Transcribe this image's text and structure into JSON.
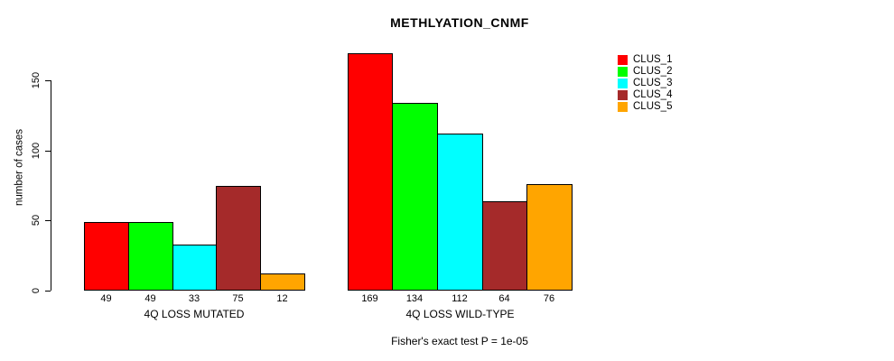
{
  "title": "METHLYATION_CNMF",
  "footer": "Fisher's exact test P = 1e-05",
  "y_axis": {
    "label": "number of cases",
    "ticks": [
      0,
      50,
      100,
      150
    ]
  },
  "legend": {
    "items": [
      {
        "label": "CLUS_1",
        "color": "#ff0000"
      },
      {
        "label": "CLUS_2",
        "color": "#00ff00"
      },
      {
        "label": "CLUS_3",
        "color": "#00ffff"
      },
      {
        "label": "CLUS_4",
        "color": "#a52a2a"
      },
      {
        "label": "CLUS_5",
        "color": "#ffa500"
      }
    ]
  },
  "chart_data": {
    "type": "bar",
    "title": "METHLYATION_CNMF",
    "xlabel": "",
    "ylabel": "number of cases",
    "ylim": [
      0,
      150
    ],
    "grid": false,
    "legend_position": "top-right",
    "categories": [
      "4Q LOSS MUTATED",
      "4Q LOSS WILD-TYPE"
    ],
    "series": [
      {
        "name": "CLUS_1",
        "color": "#ff0000",
        "values": [
          49,
          169
        ]
      },
      {
        "name": "CLUS_2",
        "color": "#00ff00",
        "values": [
          49,
          134
        ]
      },
      {
        "name": "CLUS_3",
        "color": "#00ffff",
        "values": [
          33,
          112
        ]
      },
      {
        "name": "CLUS_4",
        "color": "#a52a2a",
        "values": [
          75,
          64
        ]
      },
      {
        "name": "CLUS_5",
        "color": "#ffa500",
        "values": [
          12,
          76
        ]
      }
    ],
    "bar_value_labels": {
      "4Q LOSS MUTATED": [
        49,
        49,
        33,
        75,
        12
      ],
      "4Q LOSS WILD-TYPE": [
        169,
        134,
        112,
        64,
        76
      ]
    },
    "annotation": "Fisher's exact test P = 1e-05"
  }
}
